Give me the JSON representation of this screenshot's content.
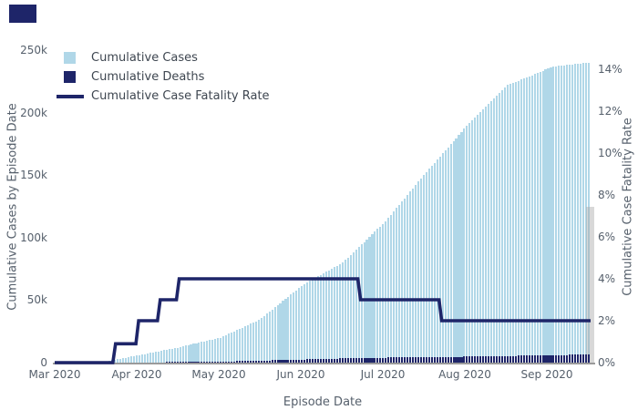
{
  "window": {
    "corner_marker_color": "#1e2569"
  },
  "legend": {
    "items": [
      {
        "label": "Cumulative Cases",
        "swatch": "square",
        "color": "#b0d7e8"
      },
      {
        "label": "Cumulative Deaths",
        "swatch": "square",
        "color": "#1e2569"
      },
      {
        "label": "Cumulative Case Fatality Rate",
        "swatch": "line",
        "color": "#1e2569"
      }
    ]
  },
  "axes": {
    "x": {
      "title": "Episode Date",
      "ticks": [
        "Mar 2020",
        "Apr 2020",
        "May 2020",
        "Jun 2020",
        "Jul 2020",
        "Aug 2020",
        "Sep 2020"
      ]
    },
    "y_left": {
      "title": "Cumulative Cases by Episode Date",
      "ticks": [
        "0",
        "50k",
        "100k",
        "150k",
        "200k",
        "250k"
      ],
      "range_k": [
        0,
        250
      ]
    },
    "y_right": {
      "title": "Cumulative Case Fatality Rate",
      "ticks": [
        "0%",
        "2%",
        "4%",
        "6%",
        "8%",
        "10%",
        "12%",
        "14%"
      ],
      "range_pct": [
        0,
        14.9
      ]
    }
  },
  "chart_data": {
    "type": "bar",
    "x_axis": "daily episode dates, Mar 1 2020 - Sep 14 2020",
    "days_total": 198,
    "grid": "off",
    "legend_position": "top-left inside plot",
    "series": [
      {
        "name": "Cumulative Cases",
        "type": "bar",
        "axis": "left",
        "color": "#b0d7e8",
        "anchor_days": [
          0,
          10,
          19,
          31,
          45,
          61,
          75,
          92,
          106,
          122,
          136,
          153,
          167,
          184,
          197
        ],
        "anchor_values_k": [
          0,
          0.1,
          1,
          6,
          12,
          20,
          34,
          63,
          80,
          113,
          150,
          192,
          222,
          237,
          240
        ]
      },
      {
        "name": "Cumulative Deaths",
        "type": "bar",
        "axis": "left",
        "color": "#1e2569",
        "anchor_days": [
          0,
          20,
          31,
          61,
          92,
          113,
          122,
          153,
          184,
          197
        ],
        "anchor_values_k": [
          0,
          0.02,
          0.15,
          0.8,
          2.5,
          3.8,
          4.0,
          4.8,
          6.0,
          6.5
        ]
      },
      {
        "name": "Cumulative Case Fatality Rate",
        "type": "step_line",
        "axis": "right",
        "color": "#1e2569",
        "points_day_pct": [
          [
            0,
            0
          ],
          [
            21.5,
            0
          ],
          [
            22.5,
            0.9
          ],
          [
            30,
            0.9
          ],
          [
            31,
            2
          ],
          [
            38,
            2
          ],
          [
            39,
            3
          ],
          [
            45,
            3
          ],
          [
            46,
            4
          ],
          [
            112,
            4
          ],
          [
            113,
            3
          ],
          [
            142,
            3
          ],
          [
            143,
            2
          ],
          [
            198,
            2
          ]
        ]
      }
    ],
    "partial_period_bar": {
      "value_k": 125,
      "color": "rgba(168,168,168,0.45)",
      "note": "gray bar at right edge of plot"
    }
  }
}
